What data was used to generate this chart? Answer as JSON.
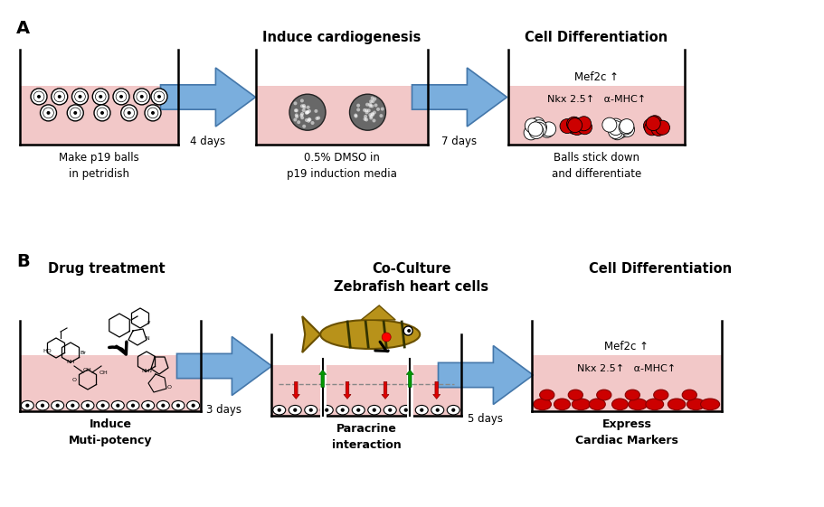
{
  "bg_color": "#ffffff",
  "fig_width": 9.12,
  "fig_height": 5.61,
  "dpi": 100,
  "pink_media": "#f2c8c8",
  "arrow_fill": "#7aaedd",
  "arrow_edge": "#4477aa",
  "black": "#000000",
  "red_cell": "#cc0000",
  "dark_red": "#880000",
  "green_cell": "#009900",
  "labels_A": {
    "panel": "A",
    "title1": "Induce cardiogenesis",
    "title2": "Cell Differentiation",
    "sub1": "Make p19 balls\nin petridish",
    "sub2": "0.5% DMSO in\np19 induction media",
    "sub3": "Balls stick down\nand differentiate",
    "days1": "4 days",
    "days2": "7 days",
    "markers1": "Mef2c ↑",
    "markers2": "Nkx 2.5↑   α-MHC↑"
  },
  "labels_B": {
    "panel": "B",
    "title1": "Drug treatment",
    "title2": "Co-Culture\nZebrafish heart cells",
    "title3": "Cell Differentiation",
    "sub1": "Induce\nMuti-potency",
    "sub2": "Paracrine\ninteraction",
    "sub3": "Express\nCardiac Markers",
    "days1": "3 days",
    "days2": "5 days",
    "markers1": "Mef2c ↑",
    "markers2": "Nkx 2.5↑   α-MHC↑"
  }
}
